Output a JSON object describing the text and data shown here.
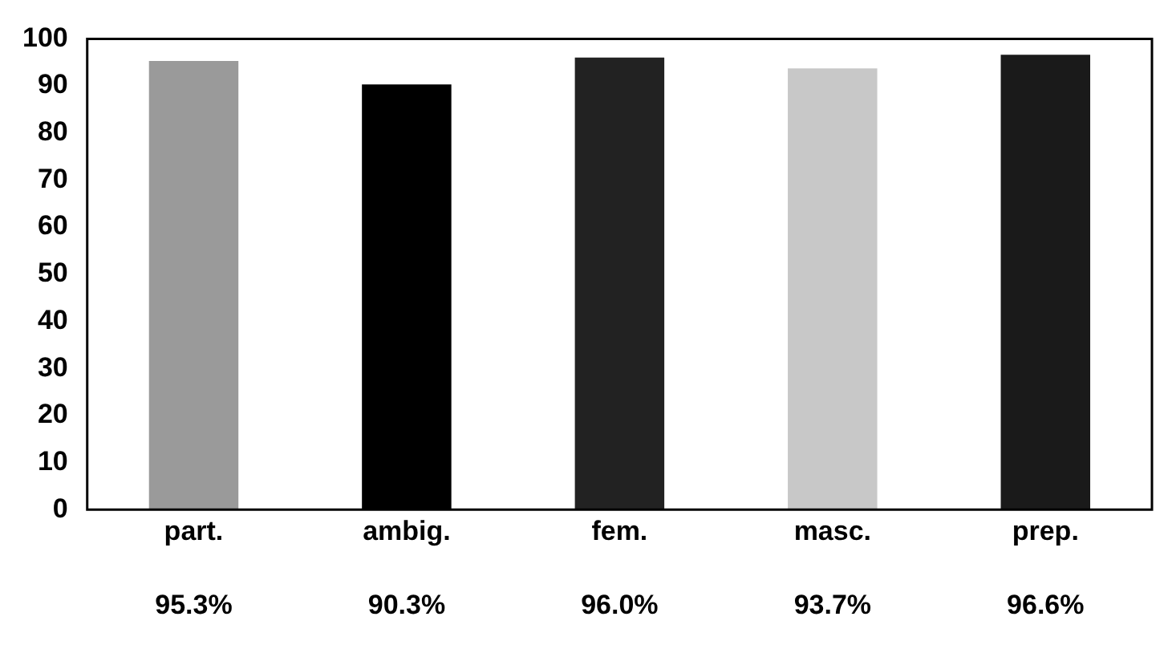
{
  "chart_data": {
    "type": "bar",
    "categories": [
      "part.",
      "ambig.",
      "fem.",
      "masc.",
      "prep."
    ],
    "values": [
      95.3,
      90.3,
      96.0,
      93.7,
      96.6
    ],
    "value_labels": [
      "95.3%",
      "90.3%",
      "96.0%",
      "93.7%",
      "96.6%"
    ],
    "colors": [
      "#9a9a9a",
      "#000000",
      "#222222",
      "#c8c8c8",
      "#1a1a1a"
    ],
    "ylim": [
      0,
      100
    ],
    "yticks": [
      0,
      10,
      20,
      30,
      40,
      50,
      60,
      70,
      80,
      90,
      100
    ],
    "grid": false,
    "legend": false
  }
}
